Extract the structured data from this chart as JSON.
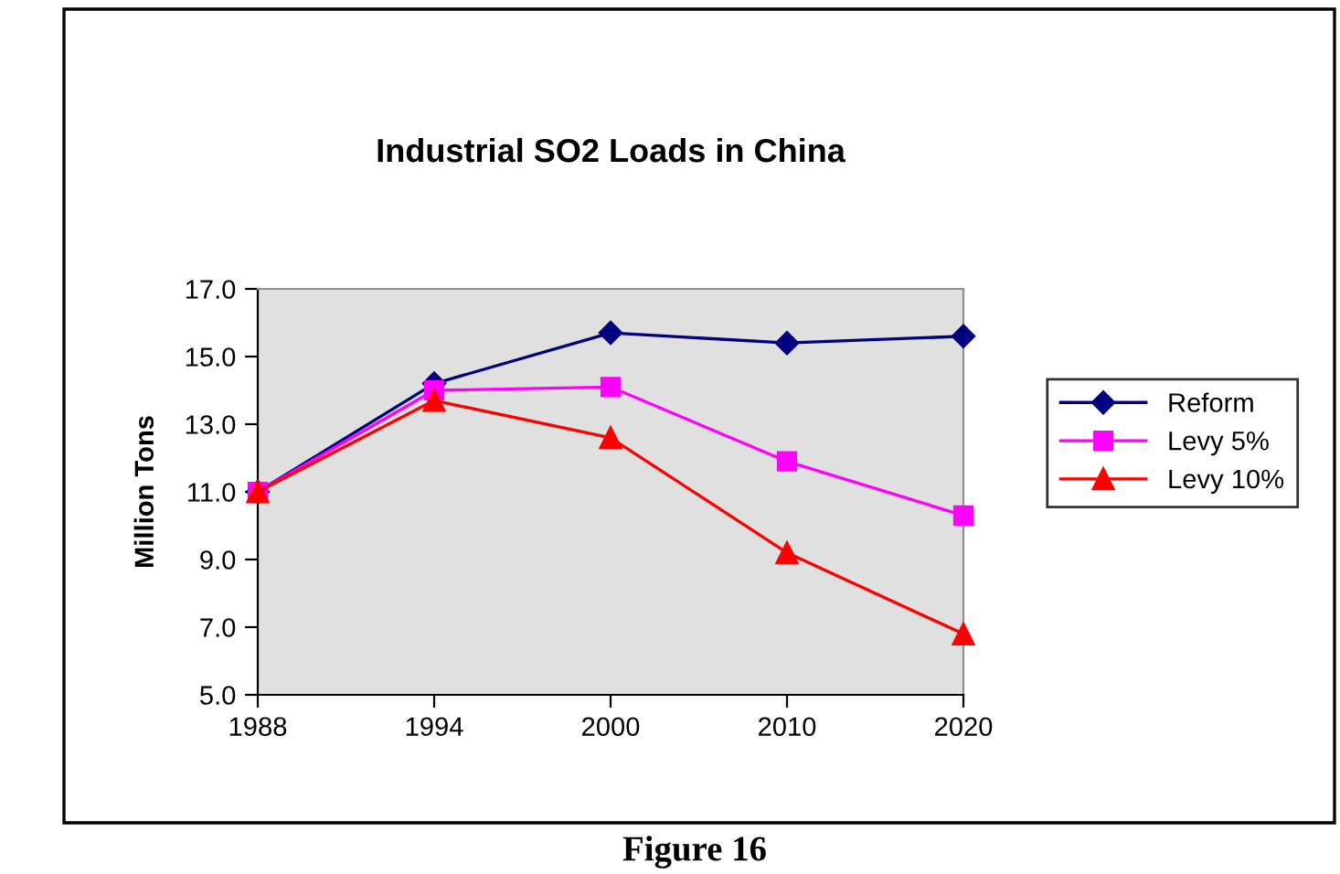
{
  "chart_data": {
    "type": "line",
    "title": "Industrial SO2 Loads in China",
    "ylabel": "Million Tons",
    "categories": [
      "1988",
      "1994",
      "2000",
      "2010",
      "2020"
    ],
    "series": [
      {
        "name": "Reform",
        "color": "#000080",
        "marker": "diamond",
        "values": [
          11.0,
          14.2,
          15.7,
          15.4,
          15.6
        ]
      },
      {
        "name": "Levy 5%",
        "color": "#ff00ff",
        "marker": "square",
        "values": [
          11.0,
          14.0,
          14.1,
          11.9,
          10.3
        ]
      },
      {
        "name": "Levy 10%",
        "color": "#ff0000",
        "marker": "triangle",
        "values": [
          11.0,
          13.7,
          12.6,
          9.2,
          6.8
        ]
      }
    ],
    "ylim": [
      5.0,
      17.0
    ],
    "yticks": [
      {
        "value": 5,
        "label": "5.0"
      },
      {
        "value": 7,
        "label": "7.0"
      },
      {
        "value": 9,
        "label": "9.0"
      },
      {
        "value": 11,
        "label": "11.0"
      },
      {
        "value": 13,
        "label": "13.0"
      },
      {
        "value": 15,
        "label": "15.0"
      },
      {
        "value": 17,
        "label": "17.0"
      }
    ],
    "grid": false,
    "legend": "right",
    "annotations": [
      "Figure 16"
    ]
  }
}
